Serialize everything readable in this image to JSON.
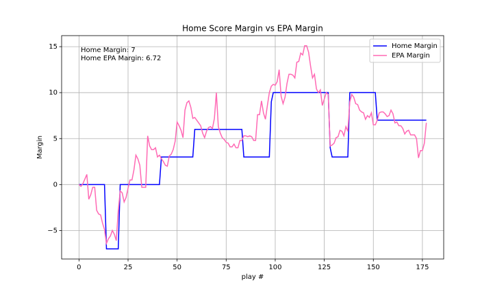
{
  "chart_data": {
    "type": "line",
    "title": "Home Score Margin vs EPA Margin",
    "x_label": "play #",
    "y_label": "Margin",
    "annotations": [
      "Home Margin: 7",
      "Home EPA Margin: 6.72"
    ],
    "x": [
      0,
      1,
      2,
      3,
      4,
      5,
      6,
      7,
      8,
      9,
      10,
      11,
      12,
      13,
      14,
      15,
      16,
      17,
      18,
      19,
      20,
      21,
      22,
      23,
      24,
      25,
      26,
      27,
      28,
      29,
      30,
      31,
      32,
      33,
      34,
      35,
      36,
      37,
      38,
      39,
      40,
      41,
      42,
      43,
      44,
      45,
      46,
      47,
      48,
      49,
      50,
      51,
      52,
      53,
      54,
      55,
      56,
      57,
      58,
      59,
      60,
      61,
      62,
      63,
      64,
      65,
      66,
      67,
      68,
      69,
      70,
      71,
      72,
      73,
      74,
      75,
      76,
      77,
      78,
      79,
      80,
      81,
      82,
      83,
      84,
      85,
      86,
      87,
      88,
      89,
      90,
      91,
      92,
      93,
      94,
      95,
      96,
      97,
      98,
      99,
      100,
      101,
      102,
      103,
      104,
      105,
      106,
      107,
      108,
      109,
      110,
      111,
      112,
      113,
      114,
      115,
      116,
      117,
      118,
      119,
      120,
      121,
      122,
      123,
      124,
      125,
      126,
      127,
      128,
      129,
      130,
      131,
      132,
      133,
      134,
      135,
      136,
      137,
      138,
      139,
      140,
      141,
      142,
      143,
      144,
      145,
      146,
      147,
      148,
      149,
      150,
      151,
      152,
      153,
      154,
      155,
      156,
      157,
      158,
      159,
      160,
      161,
      162,
      163,
      164,
      165,
      166,
      167,
      168,
      169,
      170,
      171,
      172,
      173,
      174,
      175,
      176,
      177
    ],
    "series": [
      {
        "name": "Home Margin",
        "color": "#0000ff",
        "values": [
          0,
          0,
          0,
          0,
          0,
          0,
          0,
          0,
          0,
          0,
          0,
          0,
          0,
          0,
          -7,
          -7,
          -7,
          -7,
          -7,
          -7,
          -7,
          0,
          0,
          0,
          0,
          0,
          0,
          0,
          0,
          0,
          0,
          0,
          0,
          0,
          0,
          0,
          0,
          0,
          0,
          0,
          0,
          0,
          3,
          3,
          3,
          3,
          3,
          3,
          3,
          3,
          3,
          3,
          3,
          3,
          3,
          3,
          3,
          3,
          3,
          6,
          6,
          6,
          6,
          6,
          6,
          6,
          6,
          6,
          6,
          6,
          6,
          6,
          6,
          6,
          6,
          6,
          6,
          6,
          6,
          6,
          6,
          6,
          6,
          6,
          3,
          3,
          3,
          3,
          3,
          3,
          3,
          3,
          3,
          3,
          3,
          3,
          3,
          3,
          9,
          10,
          10,
          10,
          10,
          10,
          10,
          10,
          10,
          10,
          10,
          10,
          10,
          10,
          10,
          10,
          10,
          10,
          10,
          10,
          10,
          10,
          10,
          10,
          10,
          10,
          10,
          10,
          10,
          10,
          4,
          3,
          3,
          3,
          3,
          3,
          3,
          3,
          3,
          3,
          10,
          10,
          10,
          10,
          10,
          10,
          10,
          10,
          10,
          10,
          10,
          10,
          10,
          10,
          7,
          7,
          7,
          7,
          7,
          7,
          7,
          7,
          7,
          7,
          7,
          7,
          7,
          7,
          7,
          7,
          7,
          7,
          7,
          7,
          7,
          7,
          7,
          7,
          7,
          7
        ]
      },
      {
        "name": "EPA Margin",
        "color": "#ff69b4",
        "values": [
          0,
          -0.2,
          0.1,
          0.6,
          1.1,
          -1.6,
          -1.1,
          -0.3,
          -0.3,
          -2.8,
          -3.2,
          -3.3,
          -4.2,
          -4.9,
          -6.4,
          -5.9,
          -5.6,
          -5.0,
          -5.4,
          -6.1,
          -2.9,
          -0.7,
          -0.9,
          -1.9,
          -1.4,
          -0.4,
          0.5,
          0.5,
          1.6,
          3.2,
          2.8,
          2.1,
          -0.3,
          -0.3,
          -0.3,
          5.3,
          4.2,
          3.8,
          3.8,
          4.0,
          3.0,
          3.2,
          2.8,
          2.5,
          2.1,
          2.0,
          3.1,
          3.3,
          3.8,
          4.7,
          6.8,
          6.4,
          5.9,
          5.1,
          8.1,
          8.9,
          9.1,
          8.4,
          7.2,
          7.3,
          7.0,
          6.7,
          6.4,
          5.6,
          5.1,
          5.8,
          6.2,
          6.3,
          6.1,
          7.2,
          10.0,
          6.3,
          5.6,
          5.1,
          4.9,
          4.6,
          4.5,
          4.1,
          4.1,
          4.4,
          4.0,
          4.0,
          4.8,
          4.8,
          5.3,
          5.3,
          5.2,
          5.3,
          5.2,
          4.8,
          4.8,
          7.6,
          7.6,
          9.1,
          7.8,
          7.1,
          8.6,
          10.0,
          10.7,
          10.9,
          10.8,
          11.2,
          12.5,
          9.6,
          8.8,
          9.5,
          11.0,
          12.0,
          12.0,
          11.9,
          11.6,
          13.3,
          13.4,
          14.3,
          14.1,
          15.1,
          15.1,
          14.4,
          12.9,
          11.6,
          12.0,
          10.4,
          10.0,
          10.3,
          8.6,
          9.3,
          10.0,
          9.8,
          4.2,
          4.3,
          4.5,
          5.1,
          5.2,
          5.9,
          5.8,
          5.3,
          6.3,
          5.8,
          9.0,
          9.8,
          9.5,
          8.8,
          8.7,
          8.1,
          7.9,
          7.8,
          7.1,
          7.5,
          7.3,
          7.8,
          6.5,
          6.5,
          7.0,
          7.8,
          7.9,
          7.9,
          7.7,
          7.4,
          7.5,
          8.1,
          7.7,
          6.7,
          6.8,
          6.4,
          6.4,
          6.1,
          5.5,
          5.8,
          5.9,
          5.4,
          5.4,
          5.4,
          5.0,
          2.9,
          3.7,
          3.7,
          4.5,
          6.72
        ]
      }
    ],
    "xlim": [
      -8.85,
      185.85
    ],
    "ylim": [
      -8.1,
      16.2
    ],
    "xticks": [
      0,
      25,
      50,
      75,
      100,
      125,
      150,
      175
    ],
    "yticks": [
      {
        "value": -5,
        "label": "−5"
      },
      0,
      5,
      10,
      15
    ],
    "grid": true,
    "legend": "upper right"
  }
}
